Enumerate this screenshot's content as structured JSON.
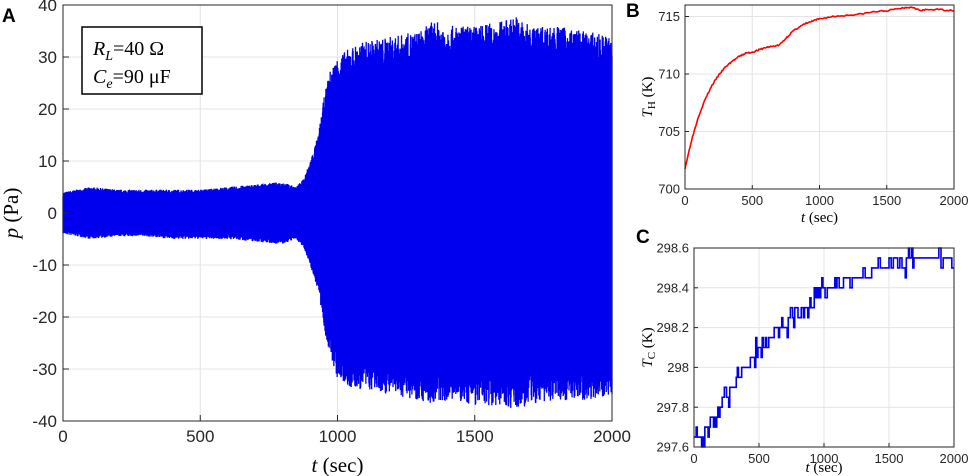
{
  "chart_data": [
    {
      "panel": "A",
      "type": "line",
      "xlabel": "t (sec)",
      "ylabel": "p (Pa)",
      "xlim": [
        0,
        2000
      ],
      "ylim": [
        -40,
        40
      ],
      "xticks": [
        0,
        500,
        1000,
        1500,
        2000
      ],
      "yticks": [
        -40,
        -30,
        -20,
        -10,
        0,
        10,
        20,
        30,
        40
      ],
      "grid": true,
      "color": "#0000ee",
      "annotation": [
        "R_L=40 Ω",
        "C_e=90 μF"
      ],
      "series": [
        {
          "envelope_x": [
            0,
            100,
            200,
            300,
            400,
            500,
            600,
            700,
            800,
            850,
            880,
            900,
            930,
            950,
            970,
            1000,
            1050,
            1100,
            1200,
            1300,
            1350,
            1400,
            1500,
            1600,
            1650,
            1700,
            1800,
            1900,
            2000
          ],
          "envelope_upper": [
            4,
            5,
            4.5,
            4.5,
            4.5,
            4.5,
            5,
            5.5,
            6,
            5,
            7,
            10,
            15,
            22,
            27,
            30,
            32,
            33,
            34,
            35,
            37,
            36,
            36,
            37,
            38,
            36,
            36,
            35,
            34
          ],
          "envelope_lower": [
            -4,
            -5,
            -4.5,
            -4.5,
            -5,
            -5,
            -5,
            -5.5,
            -6,
            -5,
            -7,
            -10,
            -15,
            -22,
            -27,
            -32,
            -34,
            -34,
            -35,
            -36,
            -37,
            -36,
            -37,
            -37,
            -38,
            -37,
            -36,
            -36,
            -35
          ]
        }
      ]
    },
    {
      "panel": "B",
      "type": "line",
      "xlabel": "t (sec)",
      "ylabel": "T_H (K)",
      "xlim": [
        0,
        2000
      ],
      "ylim": [
        700,
        716
      ],
      "xticks": [
        0,
        500,
        1000,
        1500,
        2000
      ],
      "yticks": [
        700,
        705,
        710,
        715
      ],
      "grid": true,
      "color": "#ff0000",
      "series": [
        {
          "x": [
            0,
            50,
            100,
            150,
            200,
            250,
            300,
            350,
            400,
            450,
            500,
            550,
            600,
            650,
            700,
            750,
            800,
            850,
            900,
            950,
            1000,
            1100,
            1200,
            1300,
            1400,
            1500,
            1600,
            1650,
            1700,
            1750,
            1800,
            1900,
            2000
          ],
          "values": [
            701.8,
            704.3,
            706.3,
            707.8,
            709.0,
            709.9,
            710.6,
            711.1,
            711.5,
            711.8,
            711.9,
            712.1,
            712.3,
            712.4,
            712.5,
            713.1,
            713.7,
            714.1,
            714.4,
            714.6,
            714.8,
            715.0,
            715.1,
            715.2,
            715.4,
            715.5,
            715.7,
            715.8,
            715.8,
            715.5,
            715.6,
            715.6,
            715.5
          ]
        }
      ]
    },
    {
      "panel": "C",
      "type": "line",
      "xlabel": "t (sec)",
      "ylabel": "T_C (K)",
      "xlim": [
        0,
        2000
      ],
      "ylim": [
        297.6,
        298.6
      ],
      "xticks": [
        0,
        500,
        1000,
        1500,
        2000
      ],
      "yticks": [
        297.6,
        297.8,
        298,
        298.2,
        298.4,
        298.6
      ],
      "ytick_labels": [
        "297.6",
        "297.8",
        "298",
        "298.2",
        "298.4",
        "298.6"
      ],
      "grid": true,
      "color": "#0000ee",
      "series": [
        {
          "x": [
            0,
            50,
            100,
            150,
            200,
            250,
            300,
            350,
            400,
            450,
            500,
            550,
            600,
            650,
            700,
            750,
            800,
            850,
            900,
            950,
            1000,
            1050,
            1100,
            1200,
            1300,
            1400,
            1500,
            1600,
            1650,
            1700,
            1800,
            1900,
            2000
          ],
          "values": [
            297.7,
            297.65,
            297.7,
            297.75,
            297.8,
            297.85,
            297.9,
            297.95,
            298.0,
            298.05,
            298.1,
            298.1,
            298.15,
            298.2,
            298.2,
            298.25,
            298.25,
            298.3,
            298.3,
            298.35,
            298.4,
            298.4,
            298.4,
            298.45,
            298.45,
            298.5,
            298.5,
            298.5,
            298.55,
            298.55,
            298.55,
            298.55,
            298.55
          ]
        }
      ]
    }
  ]
}
